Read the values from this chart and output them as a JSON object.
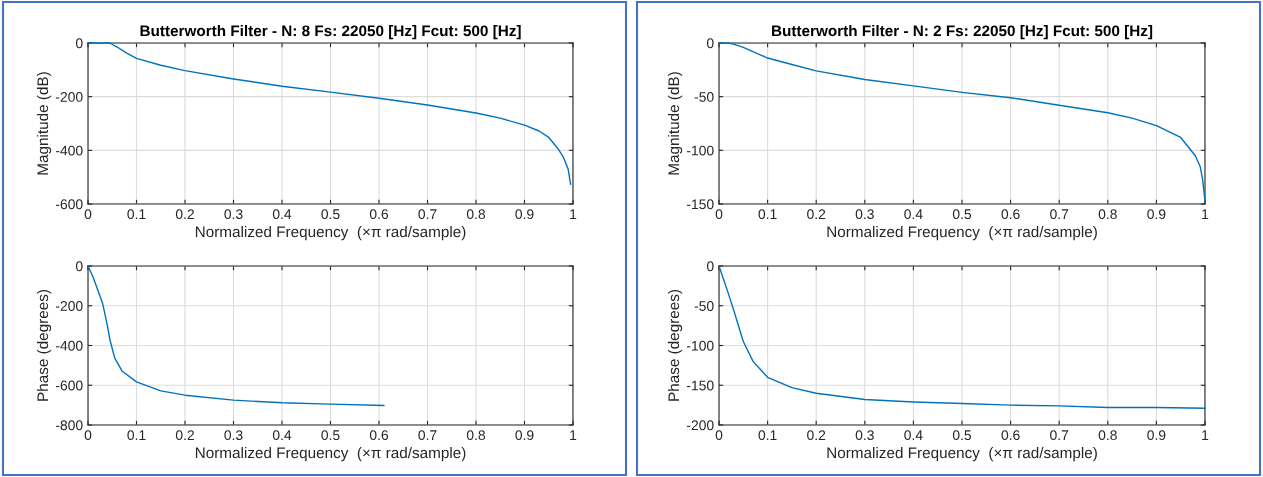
{
  "chart_data": [
    {
      "type": "line",
      "title": "Butterworth Filter - N: 8 Fs: 22050 [Hz] Fcut: 500 [Hz]",
      "xlabel": "Normalized Frequency  (×π rad/sample)",
      "ylabel": "Magnitude (dB)",
      "xlim": [
        0,
        1
      ],
      "ylim": [
        -600,
        0
      ],
      "xticks": [
        0,
        0.1,
        0.2,
        0.3,
        0.4,
        0.5,
        0.6,
        0.7,
        0.8,
        0.9,
        1
      ],
      "yticks": [
        -600,
        -400,
        -200,
        0
      ],
      "grid": true,
      "series": [
        {
          "color": "#0072bd",
          "x": [
            0,
            0.045,
            0.06,
            0.08,
            0.1,
            0.15,
            0.2,
            0.3,
            0.4,
            0.5,
            0.6,
            0.7,
            0.8,
            0.85,
            0.9,
            0.93,
            0.95,
            0.97,
            0.98,
            0.99,
            0.995
          ],
          "values": [
            0,
            0,
            -15,
            -38,
            -57,
            -83,
            -103,
            -134,
            -161,
            -183,
            -206,
            -231,
            -261,
            -280,
            -306,
            -328,
            -352,
            -396,
            -425,
            -470,
            -526
          ]
        }
      ]
    },
    {
      "type": "line",
      "title": "Butterworth Filter - N: 2 Fs: 22050 [Hz] Fcut: 500 [Hz]",
      "xlabel": "Normalized Frequency  (×π rad/sample)",
      "ylabel": "Magnitude (dB)",
      "xlim": [
        0,
        1
      ],
      "ylim": [
        -150,
        0
      ],
      "xticks": [
        0,
        0.1,
        0.2,
        0.3,
        0.4,
        0.5,
        0.6,
        0.7,
        0.8,
        0.9,
        1
      ],
      "yticks": [
        -150,
        -100,
        -50,
        0
      ],
      "grid": true,
      "series": [
        {
          "color": "#0072bd",
          "x": [
            0,
            0.02,
            0.03,
            0.05,
            0.07,
            0.1,
            0.15,
            0.2,
            0.3,
            0.4,
            0.5,
            0.6,
            0.7,
            0.8,
            0.85,
            0.9,
            0.95,
            0.98,
            0.99,
            0.995,
            1
          ],
          "values": [
            0,
            0,
            -1,
            -4,
            -8,
            -14,
            -20,
            -26,
            -34,
            -40,
            -46,
            -51,
            -58,
            -65,
            -70,
            -77,
            -88,
            -105,
            -115,
            -127,
            -147
          ]
        }
      ]
    },
    {
      "type": "line",
      "xlabel": "Normalized Frequency  (×π rad/sample)",
      "ylabel": "Phase (degrees)",
      "xlim": [
        0,
        1
      ],
      "ylim": [
        -800,
        0
      ],
      "xticks": [
        0,
        0.1,
        0.2,
        0.3,
        0.4,
        0.5,
        0.6,
        0.7,
        0.8,
        0.9,
        1
      ],
      "yticks": [
        -800,
        -600,
        -400,
        -200,
        0
      ],
      "grid": true,
      "series": [
        {
          "color": "#0072bd",
          "x": [
            0,
            0.01,
            0.02,
            0.03,
            0.04,
            0.045,
            0.055,
            0.07,
            0.1,
            0.15,
            0.2,
            0.3,
            0.4,
            0.5,
            0.61
          ],
          "values": [
            0,
            -53,
            -120,
            -187,
            -300,
            -370,
            -462,
            -528,
            -583,
            -628,
            -650,
            -675,
            -688,
            -695,
            -702
          ]
        }
      ]
    },
    {
      "type": "line",
      "xlabel": "Normalized Frequency  (×π rad/sample)",
      "ylabel": "Phase (degrees)",
      "xlim": [
        0,
        1
      ],
      "ylim": [
        -200,
        0
      ],
      "xticks": [
        0,
        0.1,
        0.2,
        0.3,
        0.4,
        0.5,
        0.6,
        0.7,
        0.8,
        0.9,
        1
      ],
      "yticks": [
        -200,
        -150,
        -100,
        -50,
        0
      ],
      "grid": true,
      "series": [
        {
          "color": "#0072bd",
          "x": [
            0,
            0.01,
            0.02,
            0.03,
            0.05,
            0.07,
            0.1,
            0.15,
            0.2,
            0.3,
            0.4,
            0.5,
            0.6,
            0.7,
            0.8,
            0.9,
            1
          ],
          "values": [
            0,
            -18,
            -36,
            -55,
            -95,
            -120,
            -140,
            -153,
            -160,
            -168,
            -171,
            -173,
            -175,
            -176,
            -178,
            -178,
            -179
          ]
        }
      ]
    }
  ]
}
